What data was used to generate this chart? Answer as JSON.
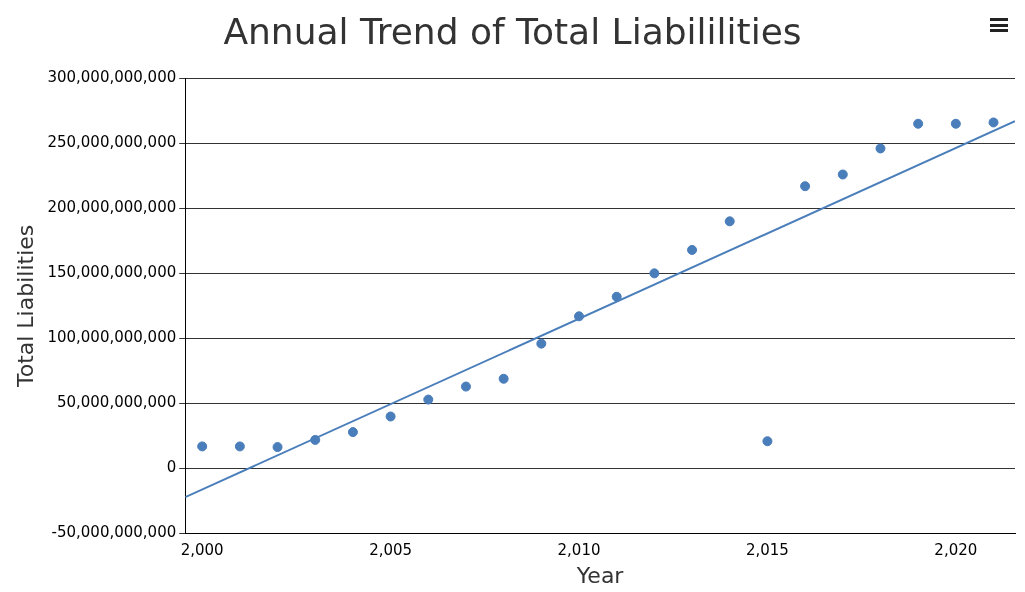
{
  "chart_data": {
    "type": "scatter",
    "title": "Annual Trend of Total Liabililities",
    "xlabel": "Year",
    "ylabel": "Total Liabilities",
    "x": [
      2000,
      2001,
      2002,
      2003,
      2004,
      2005,
      2006,
      2007,
      2008,
      2009,
      2010,
      2011,
      2012,
      2013,
      2014,
      2015,
      2016,
      2017,
      2018,
      2019,
      2020,
      2021
    ],
    "series": [
      {
        "color": "#4a7ebb",
        "values": [
          17000000000,
          17000000000,
          16500000000,
          22000000000,
          28000000000,
          40000000000,
          53000000000,
          63000000000,
          69000000000,
          96000000000,
          117000000000,
          132000000000,
          150000000000,
          168000000000,
          190000000000,
          21000000000,
          217000000000,
          226000000000,
          246000000000,
          265000000000,
          265000000000,
          266000000000
        ]
      },
      {
        "type": "line",
        "marker": "none",
        "color": "#4a7ebb",
        "x": [
          1999.55,
          2021.57
        ],
        "values": [
          -22000000000,
          267000000000
        ]
      }
    ],
    "xlim": [
      1999.55,
      2021.57
    ],
    "xticks": [
      {
        "value": 2000,
        "label": "2,000"
      },
      {
        "value": 2005,
        "label": "2,005"
      },
      {
        "value": 2010,
        "label": "2,010"
      },
      {
        "value": 2015,
        "label": "2,015"
      },
      {
        "value": 2020,
        "label": "2,020"
      }
    ],
    "ylim": [
      -50000000000,
      300000000000
    ],
    "yticks": [
      {
        "value": -50000000000,
        "label": "-50,000,000,000"
      },
      {
        "value": 0,
        "label": "0"
      },
      {
        "value": 50000000000,
        "label": "50,000,000,000"
      },
      {
        "value": 100000000000,
        "label": "100,000,000,000"
      },
      {
        "value": 150000000000,
        "label": "150,000,000,000"
      },
      {
        "value": 200000000000,
        "label": "200,000,000,000"
      },
      {
        "value": 250000000000,
        "label": "250,000,000,000"
      },
      {
        "value": 300000000000,
        "label": "300,000,000,000"
      }
    ],
    "grid": "y",
    "legend": false,
    "marker": "circle",
    "line_style": "solid"
  }
}
